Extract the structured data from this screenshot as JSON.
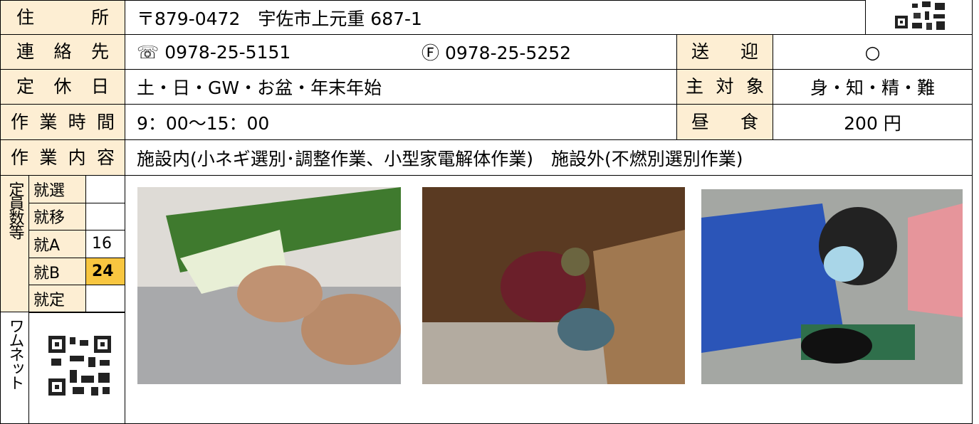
{
  "address": {
    "label": "住所",
    "value": "〒879-0472　宇佐市上元重 687-1"
  },
  "contact": {
    "label": "連絡先",
    "tel": "☏ 0978-25-5151",
    "fax": "Ⓕ 0978-25-5252"
  },
  "pickup": {
    "label": "送迎",
    "value": "○"
  },
  "holidays": {
    "label": "定休日",
    "value": "土・日・GW・お盆・年末年始"
  },
  "target": {
    "label": "主対象",
    "value": "身・知・精・難"
  },
  "hours": {
    "label": "作業時間",
    "value": "9：00～15：00"
  },
  "lunch": {
    "label": "昼食",
    "value": "200 円"
  },
  "work": {
    "label": "作業内容",
    "value": "施設内(小ネギ選別･調整作業、小型家電解体作業)　施設外(不燃別選別作業)"
  },
  "capacity": {
    "label": "定員数等",
    "rows": [
      {
        "label": "就選"
      },
      {
        "label": "就移"
      },
      {
        "label": "就A",
        "value": 16
      },
      {
        "label": "就B",
        "value": 24
      },
      {
        "label": "就定"
      }
    ]
  },
  "wamnet": {
    "label": "ワムネット"
  }
}
